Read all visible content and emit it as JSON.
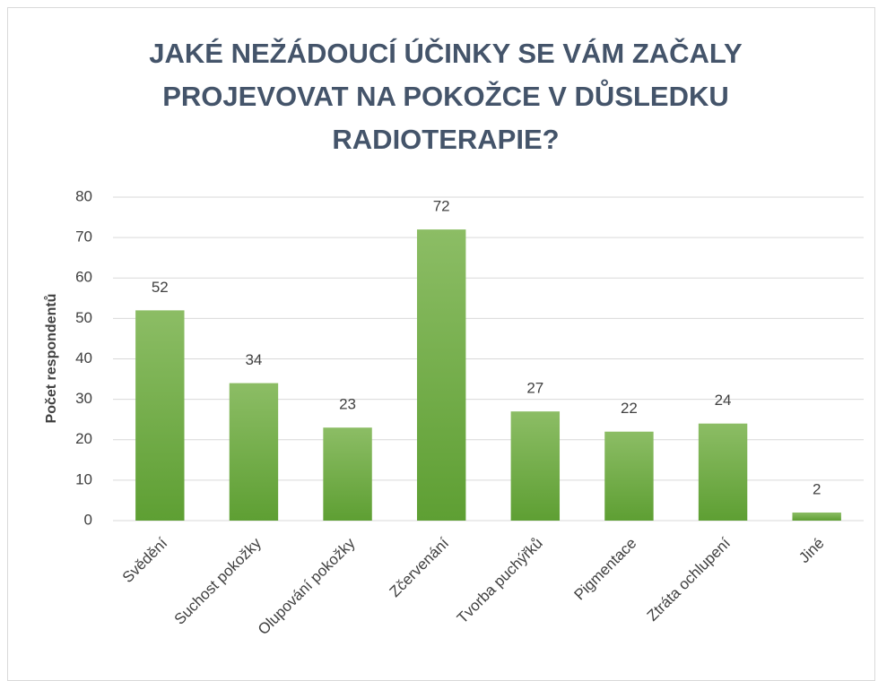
{
  "chart_data": {
    "type": "bar",
    "title": "JAKÉ NEŽÁDOUCÍ ÚČINKY SE VÁM ZAČALY PROJEVOVAT NA POKOŽCE V DŮSLEDKU RADIOTERAPIE?",
    "y_label": "Počet respondentů",
    "categories": [
      "Svědění",
      "Suchost pokožky",
      "Olupování pokožky",
      "Zčervenání",
      "Tvorba puchýřků",
      "Pigmentace",
      "Ztráta ochlupení",
      "Jiné"
    ],
    "values": [
      52,
      34,
      23,
      72,
      27,
      22,
      24,
      2
    ],
    "color": "#70ad47",
    "ylim": [
      0,
      80
    ],
    "yticks": [
      0,
      10,
      20,
      30,
      40,
      50,
      60,
      70,
      80
    ],
    "grid": true
  }
}
